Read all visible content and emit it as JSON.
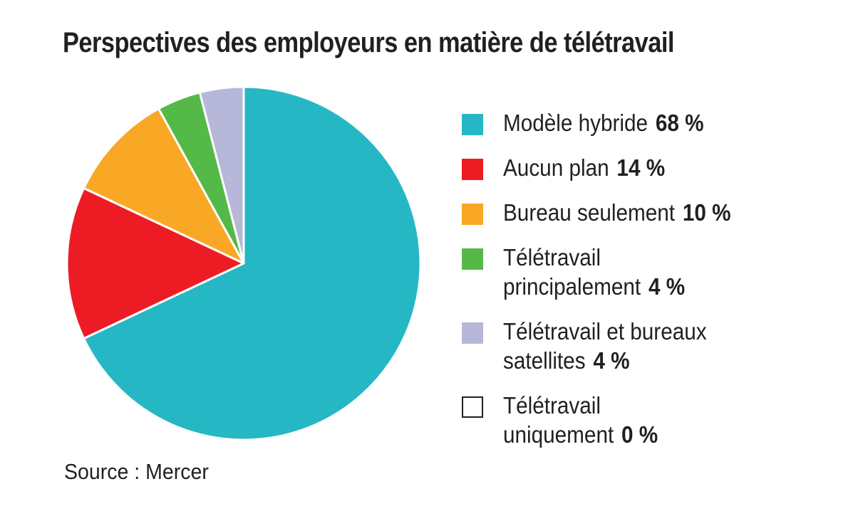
{
  "chart_data": {
    "type": "pie",
    "title": "Perspectives des employeurs en matière de télétravail",
    "source": "Source : Mercer",
    "legend_position": "right",
    "slices": [
      {
        "label": "Modèle hybride",
        "value": 68,
        "value_label": "68 %",
        "color": "#26b7c4"
      },
      {
        "label": "Aucun plan",
        "value": 14,
        "value_label": "14 %",
        "color": "#ed1c24"
      },
      {
        "label": "Bureau seulement",
        "value": 10,
        "value_label": "10 %",
        "color": "#f9a825"
      },
      {
        "label": "Télétravail principalement",
        "value": 4,
        "value_label": "4 %",
        "color": "#55b948"
      },
      {
        "label": "Télétravail et bureaux satellites",
        "value": 4,
        "value_label": "4 %",
        "color": "#b7b7d9"
      },
      {
        "label": "Télétravail uniquement",
        "value": 0,
        "value_label": "0 %",
        "color": "#ffffff"
      }
    ]
  }
}
